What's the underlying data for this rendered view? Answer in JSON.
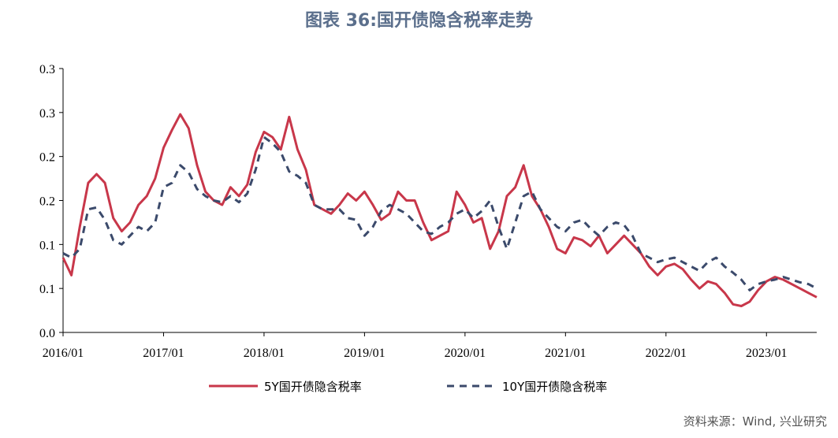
{
  "title": "图表 36:国开债隐含税率走势",
  "source": "资料来源：Wind, 兴业研究",
  "colors": {
    "title": "#5b6f8c",
    "series1": "#c8374a",
    "series2": "#3b4a6b",
    "axis": "#000000"
  },
  "chart_data": {
    "type": "line",
    "x_ticks": [
      "2016/01",
      "2017/01",
      "2018/01",
      "2019/01",
      "2020/01",
      "2021/01",
      "2022/01",
      "2023/01"
    ],
    "y_ticks": [
      "0.0",
      "0.1",
      "0.1",
      "0.2",
      "0.2",
      "0.3",
      "0.3"
    ],
    "ylim": [
      0,
      0.3
    ],
    "xlim": [
      "2016/01",
      "2023/07"
    ],
    "grid": false,
    "legend_position": "bottom",
    "series": [
      {
        "name": "5Y国开债隐含税率",
        "style": "solid",
        "points": [
          [
            "2016/01",
            0.085
          ],
          [
            "2016/02",
            0.065
          ],
          [
            "2016/03",
            0.12
          ],
          [
            "2016/04",
            0.17
          ],
          [
            "2016/05",
            0.18
          ],
          [
            "2016/06",
            0.17
          ],
          [
            "2016/07",
            0.13
          ],
          [
            "2016/08",
            0.115
          ],
          [
            "2016/09",
            0.125
          ],
          [
            "2016/10",
            0.145
          ],
          [
            "2016/11",
            0.155
          ],
          [
            "2016/12",
            0.175
          ],
          [
            "2017/01",
            0.21
          ],
          [
            "2017/02",
            0.23
          ],
          [
            "2017/03",
            0.248
          ],
          [
            "2017/04",
            0.232
          ],
          [
            "2017/05",
            0.19
          ],
          [
            "2017/06",
            0.16
          ],
          [
            "2017/07",
            0.15
          ],
          [
            "2017/08",
            0.145
          ],
          [
            "2017/09",
            0.165
          ],
          [
            "2017/10",
            0.155
          ],
          [
            "2017/11",
            0.168
          ],
          [
            "2017/12",
            0.205
          ],
          [
            "2018/01",
            0.228
          ],
          [
            "2018/02",
            0.222
          ],
          [
            "2018/03",
            0.208
          ],
          [
            "2018/04",
            0.245
          ],
          [
            "2018/05",
            0.208
          ],
          [
            "2018/06",
            0.185
          ],
          [
            "2018/07",
            0.145
          ],
          [
            "2018/08",
            0.14
          ],
          [
            "2018/09",
            0.135
          ],
          [
            "2018/10",
            0.145
          ],
          [
            "2018/11",
            0.158
          ],
          [
            "2018/12",
            0.15
          ],
          [
            "2019/01",
            0.16
          ],
          [
            "2019/02",
            0.145
          ],
          [
            "2019/03",
            0.128
          ],
          [
            "2019/04",
            0.135
          ],
          [
            "2019/05",
            0.16
          ],
          [
            "2019/06",
            0.15
          ],
          [
            "2019/07",
            0.15
          ],
          [
            "2019/08",
            0.125
          ],
          [
            "2019/09",
            0.105
          ],
          [
            "2019/10",
            0.11
          ],
          [
            "2019/11",
            0.115
          ],
          [
            "2019/12",
            0.16
          ],
          [
            "2020/01",
            0.145
          ],
          [
            "2020/02",
            0.125
          ],
          [
            "2020/03",
            0.13
          ],
          [
            "2020/04",
            0.095
          ],
          [
            "2020/05",
            0.115
          ],
          [
            "2020/06",
            0.155
          ],
          [
            "2020/07",
            0.165
          ],
          [
            "2020/08",
            0.19
          ],
          [
            "2020/09",
            0.155
          ],
          [
            "2020/10",
            0.14
          ],
          [
            "2020/11",
            0.12
          ],
          [
            "2020/12",
            0.095
          ],
          [
            "2021/01",
            0.09
          ],
          [
            "2021/02",
            0.108
          ],
          [
            "2021/03",
            0.105
          ],
          [
            "2021/04",
            0.098
          ],
          [
            "2021/05",
            0.11
          ],
          [
            "2021/06",
            0.09
          ],
          [
            "2021/07",
            0.1
          ],
          [
            "2021/08",
            0.11
          ],
          [
            "2021/09",
            0.1
          ],
          [
            "2021/10",
            0.09
          ],
          [
            "2021/11",
            0.075
          ],
          [
            "2021/12",
            0.065
          ],
          [
            "2022/01",
            0.075
          ],
          [
            "2022/02",
            0.078
          ],
          [
            "2022/03",
            0.072
          ],
          [
            "2022/04",
            0.06
          ],
          [
            "2022/05",
            0.05
          ],
          [
            "2022/06",
            0.058
          ],
          [
            "2022/07",
            0.055
          ],
          [
            "2022/08",
            0.045
          ],
          [
            "2022/09",
            0.032
          ],
          [
            "2022/10",
            0.03
          ],
          [
            "2022/11",
            0.035
          ],
          [
            "2022/12",
            0.048
          ],
          [
            "2023/01",
            0.058
          ],
          [
            "2023/02",
            0.063
          ],
          [
            "2023/03",
            0.06
          ],
          [
            "2023/04",
            0.055
          ],
          [
            "2023/05",
            0.05
          ],
          [
            "2023/06",
            0.045
          ],
          [
            "2023/07",
            0.04
          ]
        ]
      },
      {
        "name": "10Y国开债隐含税率",
        "style": "dashed",
        "points": [
          [
            "2016/01",
            0.09
          ],
          [
            "2016/02",
            0.085
          ],
          [
            "2016/03",
            0.095
          ],
          [
            "2016/04",
            0.14
          ],
          [
            "2016/05",
            0.142
          ],
          [
            "2016/06",
            0.128
          ],
          [
            "2016/07",
            0.105
          ],
          [
            "2016/08",
            0.1
          ],
          [
            "2016/09",
            0.11
          ],
          [
            "2016/10",
            0.12
          ],
          [
            "2016/11",
            0.115
          ],
          [
            "2016/12",
            0.125
          ],
          [
            "2017/01",
            0.165
          ],
          [
            "2017/02",
            0.17
          ],
          [
            "2017/03",
            0.19
          ],
          [
            "2017/04",
            0.182
          ],
          [
            "2017/05",
            0.163
          ],
          [
            "2017/06",
            0.155
          ],
          [
            "2017/07",
            0.15
          ],
          [
            "2017/08",
            0.148
          ],
          [
            "2017/09",
            0.155
          ],
          [
            "2017/10",
            0.148
          ],
          [
            "2017/11",
            0.158
          ],
          [
            "2017/12",
            0.185
          ],
          [
            "2018/01",
            0.222
          ],
          [
            "2018/02",
            0.215
          ],
          [
            "2018/03",
            0.205
          ],
          [
            "2018/04",
            0.183
          ],
          [
            "2018/05",
            0.178
          ],
          [
            "2018/06",
            0.17
          ],
          [
            "2018/07",
            0.145
          ],
          [
            "2018/08",
            0.14
          ],
          [
            "2018/09",
            0.14
          ],
          [
            "2018/10",
            0.14
          ],
          [
            "2018/11",
            0.13
          ],
          [
            "2018/12",
            0.128
          ],
          [
            "2019/01",
            0.11
          ],
          [
            "2019/02",
            0.12
          ],
          [
            "2019/03",
            0.138
          ],
          [
            "2019/04",
            0.145
          ],
          [
            "2019/05",
            0.14
          ],
          [
            "2019/06",
            0.135
          ],
          [
            "2019/07",
            0.125
          ],
          [
            "2019/08",
            0.115
          ],
          [
            "2019/09",
            0.112
          ],
          [
            "2019/10",
            0.12
          ],
          [
            "2019/11",
            0.125
          ],
          [
            "2019/12",
            0.135
          ],
          [
            "2020/01",
            0.14
          ],
          [
            "2020/02",
            0.13
          ],
          [
            "2020/03",
            0.138
          ],
          [
            "2020/04",
            0.15
          ],
          [
            "2020/05",
            0.12
          ],
          [
            "2020/06",
            0.095
          ],
          [
            "2020/07",
            0.125
          ],
          [
            "2020/08",
            0.155
          ],
          [
            "2020/09",
            0.16
          ],
          [
            "2020/10",
            0.14
          ],
          [
            "2020/11",
            0.13
          ],
          [
            "2020/12",
            0.12
          ],
          [
            "2021/01",
            0.115
          ],
          [
            "2021/02",
            0.125
          ],
          [
            "2021/03",
            0.128
          ],
          [
            "2021/04",
            0.118
          ],
          [
            "2021/05",
            0.11
          ],
          [
            "2021/06",
            0.12
          ],
          [
            "2021/07",
            0.125
          ],
          [
            "2021/08",
            0.122
          ],
          [
            "2021/09",
            0.11
          ],
          [
            "2021/10",
            0.09
          ],
          [
            "2021/11",
            0.085
          ],
          [
            "2021/12",
            0.08
          ],
          [
            "2022/01",
            0.083
          ],
          [
            "2022/02",
            0.085
          ],
          [
            "2022/03",
            0.08
          ],
          [
            "2022/04",
            0.075
          ],
          [
            "2022/05",
            0.07
          ],
          [
            "2022/06",
            0.08
          ],
          [
            "2022/07",
            0.085
          ],
          [
            "2022/08",
            0.075
          ],
          [
            "2022/09",
            0.068
          ],
          [
            "2022/10",
            0.06
          ],
          [
            "2022/11",
            0.048
          ],
          [
            "2022/12",
            0.055
          ],
          [
            "2023/01",
            0.058
          ],
          [
            "2023/02",
            0.06
          ],
          [
            "2023/03",
            0.063
          ],
          [
            "2023/04",
            0.06
          ],
          [
            "2023/05",
            0.057
          ],
          [
            "2023/06",
            0.055
          ],
          [
            "2023/07",
            0.05
          ]
        ]
      }
    ]
  }
}
